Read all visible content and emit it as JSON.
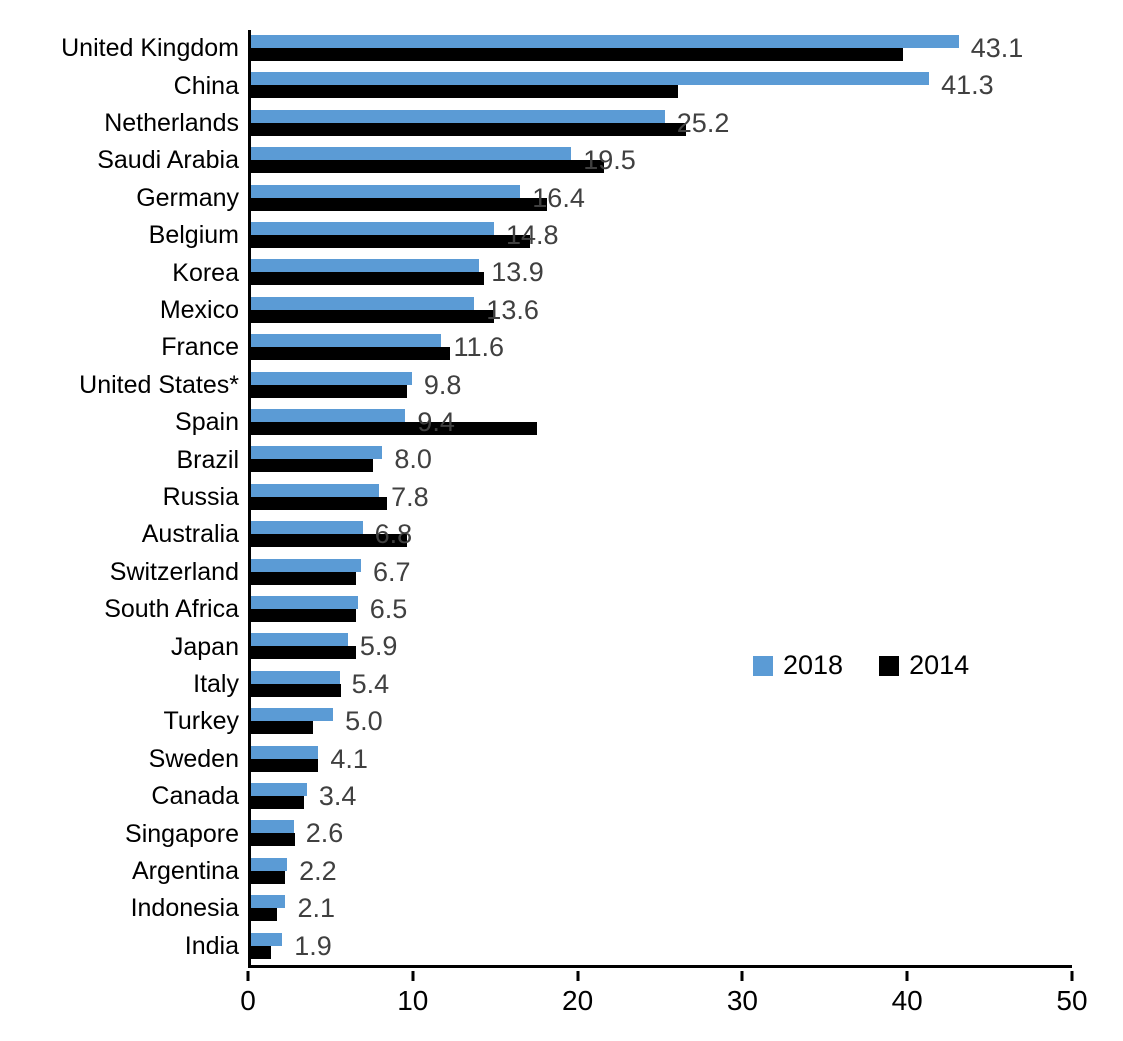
{
  "chart_data": {
    "type": "bar",
    "orientation": "horizontal",
    "title": "",
    "categories": [
      "United Kingdom",
      "China",
      "Netherlands",
      "Saudi Arabia",
      "Germany",
      "Belgium",
      "Korea",
      "Mexico",
      "France",
      "United States*",
      "Spain",
      "Brazil",
      "Russia",
      "Australia",
      "Switzerland",
      "South Africa",
      "Japan",
      "Italy",
      "Turkey",
      "Sweden",
      "Canada",
      "Singapore",
      "Argentina",
      "Indonesia",
      "India"
    ],
    "series": [
      {
        "name": "2018",
        "color": "#5B9BD5",
        "data_labels": true,
        "values": [
          43.1,
          41.3,
          25.2,
          19.5,
          16.4,
          14.8,
          13.9,
          13.6,
          11.6,
          9.8,
          9.4,
          8.0,
          7.8,
          6.8,
          6.7,
          6.5,
          5.9,
          5.4,
          5.0,
          4.1,
          3.4,
          2.6,
          2.2,
          2.1,
          1.9
        ]
      },
      {
        "name": "2014",
        "color": "#000000",
        "data_labels": false,
        "values": [
          39.7,
          26.0,
          26.5,
          21.5,
          18.0,
          17.0,
          14.2,
          14.8,
          12.1,
          9.5,
          17.4,
          7.4,
          8.3,
          9.5,
          6.4,
          6.4,
          6.4,
          5.5,
          3.8,
          4.1,
          3.2,
          2.7,
          2.1,
          1.6,
          1.2
        ]
      }
    ],
    "xlim": [
      0,
      50
    ],
    "xticks": [
      0,
      10,
      20,
      30,
      40,
      50
    ],
    "grid": false,
    "legend_position": "middle-right",
    "value_label_color": "#404040",
    "axis_color": "#000000"
  }
}
